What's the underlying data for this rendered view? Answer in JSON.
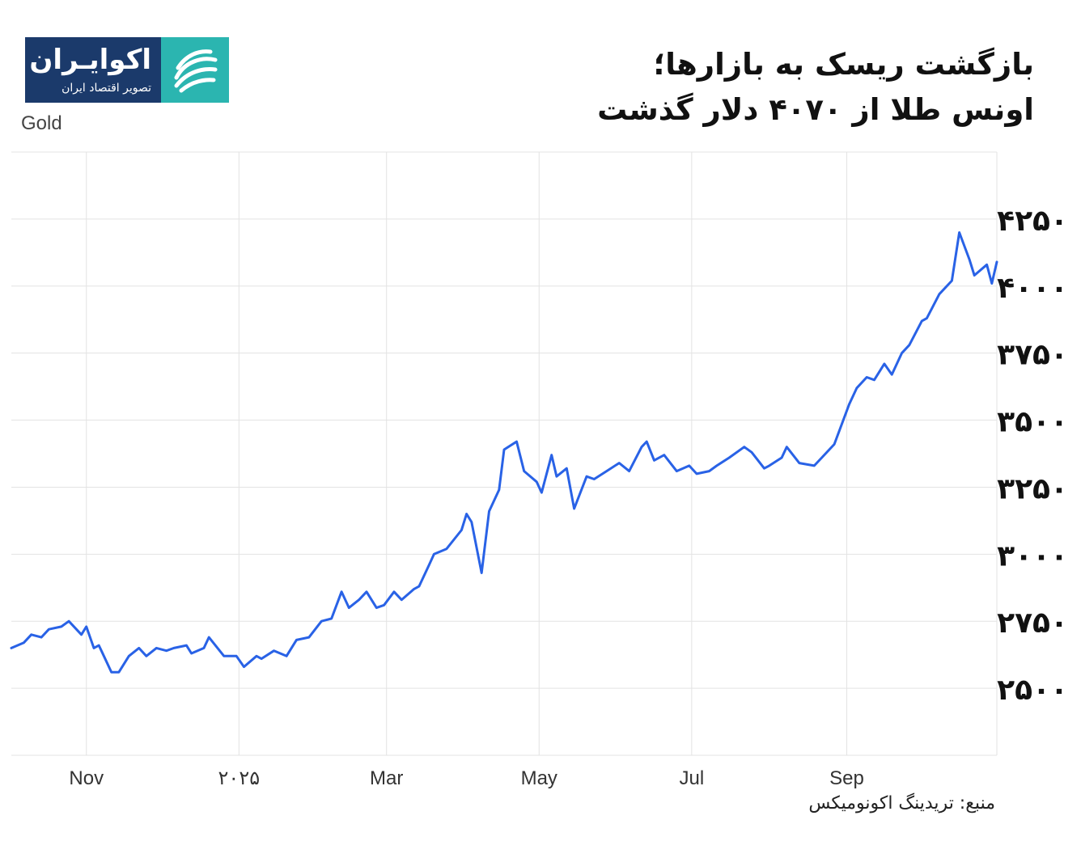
{
  "header": {
    "title_line1": "بازگشت ریسک به بازارها؛",
    "title_line2": "اونس طلا از ۴۰۷۰ دلار گذشت"
  },
  "logo": {
    "name": "اکوایـران",
    "tagline": "تصویر اقتصاد ایران"
  },
  "series_label": "Gold",
  "source": "منبع: تریدینگ اکونومیکس",
  "colors": {
    "line": "#2962e6",
    "grid": "#e3e3e3",
    "logo_dark": "#1b3a6b",
    "logo_accent": "#2bb5b0"
  },
  "chart_data": {
    "type": "line",
    "title": "",
    "xlabel": "",
    "ylabel": "",
    "ylim": [
      2250,
      4500
    ],
    "xlim": [
      "2024-10-02",
      "2025-10-31"
    ],
    "y_ticks": [
      2500,
      2750,
      3000,
      3250,
      3500,
      3750,
      4000,
      4250
    ],
    "y_tick_labels": [
      "۲۵۰۰",
      "۲۷۵۰",
      "۳۰۰۰",
      "۳۲۵۰",
      "۳۵۰۰",
      "۳۷۵۰",
      "۴۰۰۰",
      "۴۲۵۰"
    ],
    "x_ticks": [
      "2024-11-01",
      "2025-01-01",
      "2025-03-01",
      "2025-05-01",
      "2025-07-01",
      "2025-09-01"
    ],
    "x_tick_labels": [
      "Nov",
      "۲۰۲۵",
      "Mar",
      "May",
      "Jul",
      "Sep"
    ],
    "grid": true,
    "series": [
      {
        "x": [
          "2024-10-02",
          "2024-10-07",
          "2024-10-10",
          "2024-10-14",
          "2024-10-17",
          "2024-10-22",
          "2024-10-25",
          "2024-10-30",
          "2024-11-01",
          "2024-11-04",
          "2024-11-06",
          "2024-11-08",
          "2024-11-11",
          "2024-11-14",
          "2024-11-18",
          "2024-11-22",
          "2024-11-25",
          "2024-11-29",
          "2024-12-03",
          "2024-12-06",
          "2024-12-11",
          "2024-12-13",
          "2024-12-18",
          "2024-12-20",
          "2024-12-26",
          "2024-12-31",
          "2025-01-03",
          "2025-01-08",
          "2025-01-10",
          "2025-01-15",
          "2025-01-20",
          "2025-01-24",
          "2025-01-29",
          "2025-02-03",
          "2025-02-07",
          "2025-02-11",
          "2025-02-14",
          "2025-02-18",
          "2025-02-21",
          "2025-02-25",
          "2025-02-28",
          "2025-03-04",
          "2025-03-07",
          "2025-03-12",
          "2025-03-14",
          "2025-03-18",
          "2025-03-20",
          "2025-03-25",
          "2025-03-31",
          "2025-04-02",
          "2025-04-04",
          "2025-04-08",
          "2025-04-11",
          "2025-04-15",
          "2025-04-17",
          "2025-04-22",
          "2025-04-25",
          "2025-04-30",
          "2025-05-02",
          "2025-05-06",
          "2025-05-08",
          "2025-05-12",
          "2025-05-15",
          "2025-05-20",
          "2025-05-23",
          "2025-05-28",
          "2025-06-02",
          "2025-06-06",
          "2025-06-11",
          "2025-06-13",
          "2025-06-16",
          "2025-06-20",
          "2025-06-25",
          "2025-06-30",
          "2025-07-03",
          "2025-07-08",
          "2025-07-11",
          "2025-07-16",
          "2025-07-22",
          "2025-07-25",
          "2025-07-30",
          "2025-08-01",
          "2025-08-06",
          "2025-08-08",
          "2025-08-13",
          "2025-08-19",
          "2025-08-22",
          "2025-08-27",
          "2025-09-02",
          "2025-09-05",
          "2025-09-09",
          "2025-09-12",
          "2025-09-16",
          "2025-09-19",
          "2025-09-23",
          "2025-09-26",
          "2025-10-01",
          "2025-10-03",
          "2025-10-08",
          "2025-10-13",
          "2025-10-16",
          "2025-10-20",
          "2025-10-22",
          "2025-10-27",
          "2025-10-29",
          "2025-10-31"
        ],
        "y": [
          2650,
          2670,
          2700,
          2690,
          2720,
          2730,
          2750,
          2700,
          2730,
          2650,
          2660,
          2620,
          2560,
          2560,
          2620,
          2650,
          2620,
          2650,
          2640,
          2650,
          2660,
          2630,
          2650,
          2690,
          2620,
          2620,
          2580,
          2620,
          2610,
          2640,
          2620,
          2680,
          2690,
          2750,
          2760,
          2860,
          2800,
          2830,
          2860,
          2800,
          2810,
          2860,
          2830,
          2870,
          2880,
          2960,
          3000,
          3020,
          3090,
          3150,
          3120,
          2930,
          3160,
          3240,
          3390,
          3420,
          3310,
          3270,
          3230,
          3370,
          3290,
          3320,
          3170,
          3290,
          3280,
          3310,
          3340,
          3310,
          3400,
          3420,
          3350,
          3370,
          3310,
          3330,
          3300,
          3310,
          3330,
          3360,
          3400,
          3380,
          3320,
          3330,
          3360,
          3400,
          3340,
          3330,
          3360,
          3410,
          3560,
          3620,
          3660,
          3650,
          3710,
          3670,
          3750,
          3780,
          3870,
          3880,
          3970,
          4020,
          4200,
          4100,
          4040,
          4080,
          4010,
          4090
        ]
      }
    ]
  }
}
